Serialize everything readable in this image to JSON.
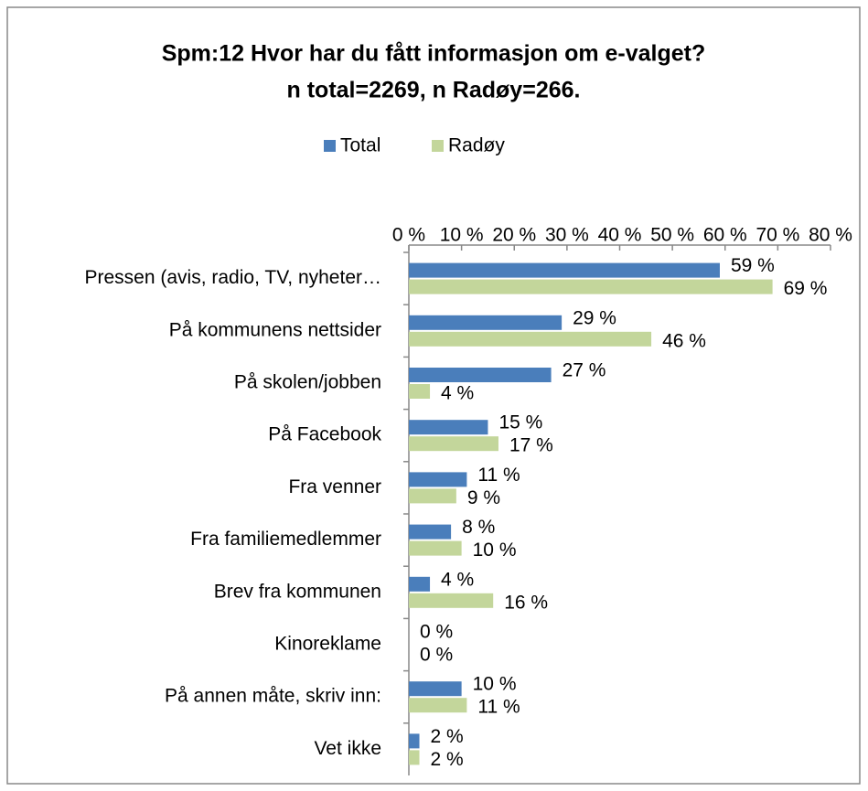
{
  "chart_data": {
    "type": "bar",
    "orientation": "horizontal",
    "title": "Spm:12 Hvor har du fått informasjon  om e-valget?",
    "subtitle": "n total=2269, n Radøy=266.",
    "categories": [
      "Pressen (avis, radio, TV, nyheter…",
      "På kommunens nettsider",
      "På skolen/jobben",
      "På Facebook",
      "Fra venner",
      "Fra familiemedlemmer",
      "Brev fra kommunen",
      "Kinoreklame",
      "På annen måte, skriv inn:",
      "Vet ikke"
    ],
    "series": [
      {
        "name": "Total",
        "color": "#4a7ebb",
        "values": [
          59,
          29,
          27,
          15,
          11,
          8,
          4,
          0,
          10,
          2
        ],
        "value_labels": [
          "59 %",
          "29 %",
          "27 %",
          "15 %",
          "11 %",
          "8 %",
          "4 %",
          "0 %",
          "10 %",
          "2 %"
        ]
      },
      {
        "name": "Radøy",
        "color": "#c3d69b",
        "values": [
          69,
          46,
          4,
          17,
          9,
          10,
          16,
          0,
          11,
          2
        ],
        "value_labels": [
          "69 %",
          "46 %",
          "4 %",
          "17 %",
          "9 %",
          "10 %",
          "16 %",
          "0 %",
          "11 %",
          "2 %"
        ]
      }
    ],
    "xlim": [
      0,
      80
    ],
    "xticks": [
      {
        "value": 0,
        "label": "0 %"
      },
      {
        "value": 10,
        "label": "10 %"
      },
      {
        "value": 20,
        "label": "20 %"
      },
      {
        "value": 30,
        "label": "30 %"
      },
      {
        "value": 40,
        "label": "40 %"
      },
      {
        "value": 50,
        "label": "50 %"
      },
      {
        "value": 60,
        "label": "60 %"
      },
      {
        "value": 70,
        "label": "70 %"
      },
      {
        "value": 80,
        "label": "80 %"
      }
    ],
    "legend": "top"
  }
}
